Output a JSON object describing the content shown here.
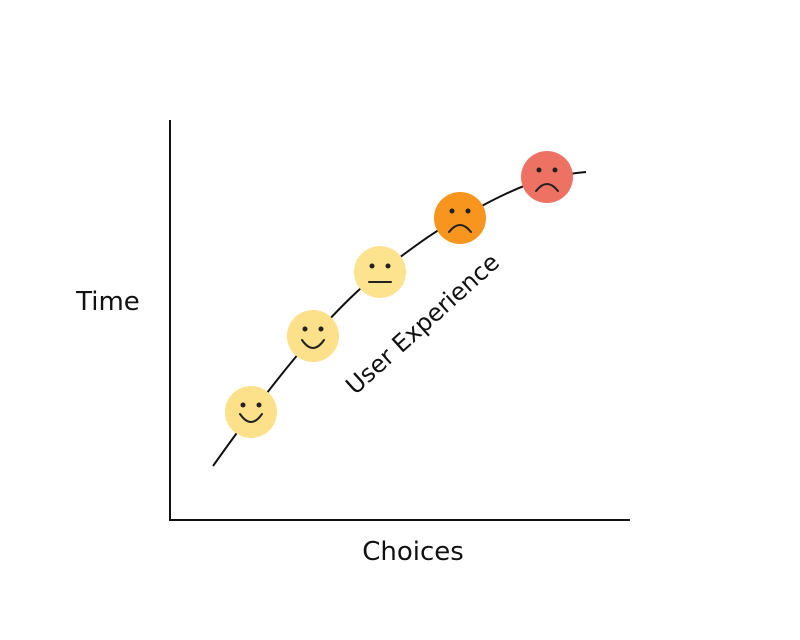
{
  "axes": {
    "y_label": "Time",
    "x_label": "Choices"
  },
  "curve": {
    "label": "User Experience"
  }
}
